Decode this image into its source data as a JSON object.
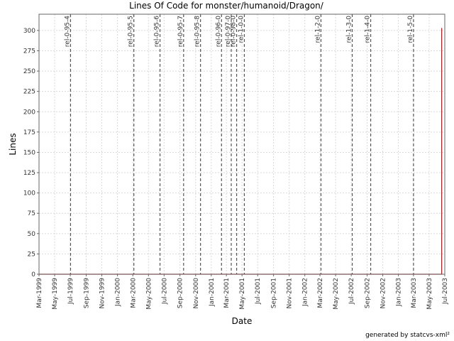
{
  "chart_data": {
    "type": "line",
    "title": "Lines Of Code for monster/humanoid/Dragon/",
    "xlabel": "Date",
    "ylabel": "Lines",
    "footer": "generated by statcvs-xml²",
    "x_range": [
      "1999-03-01",
      "2003-07-01"
    ],
    "ylim": [
      0,
      320
    ],
    "y_ticks": [
      0,
      25,
      50,
      75,
      100,
      125,
      150,
      175,
      200,
      225,
      250,
      275,
      300
    ],
    "x_ticks": [
      {
        "label": "Mar-1999",
        "date": "1999-03-01"
      },
      {
        "label": "May-1999",
        "date": "1999-05-01"
      },
      {
        "label": "Jul-1999",
        "date": "1999-07-01"
      },
      {
        "label": "Sep-1999",
        "date": "1999-09-01"
      },
      {
        "label": "Nov-1999",
        "date": "1999-11-01"
      },
      {
        "label": "Jan-2000",
        "date": "2000-01-01"
      },
      {
        "label": "Mar-2000",
        "date": "2000-03-01"
      },
      {
        "label": "May-2000",
        "date": "2000-05-01"
      },
      {
        "label": "Jul-2000",
        "date": "2000-07-01"
      },
      {
        "label": "Sep-2000",
        "date": "2000-09-01"
      },
      {
        "label": "Nov-2000",
        "date": "2000-11-01"
      },
      {
        "label": "Jan-2001",
        "date": "2001-01-01"
      },
      {
        "label": "Mar-2001",
        "date": "2001-03-01"
      },
      {
        "label": "May-2001",
        "date": "2001-05-01"
      },
      {
        "label": "Jul-2001",
        "date": "2001-07-01"
      },
      {
        "label": "Sep-2001",
        "date": "2001-09-01"
      },
      {
        "label": "Nov-2001",
        "date": "2001-11-01"
      },
      {
        "label": "Jan-2002",
        "date": "2002-01-01"
      },
      {
        "label": "Mar-2002",
        "date": "2002-03-01"
      },
      {
        "label": "May-2002",
        "date": "2002-05-01"
      },
      {
        "label": "Jul-2002",
        "date": "2002-07-01"
      },
      {
        "label": "Sep-2002",
        "date": "2002-09-01"
      },
      {
        "label": "Nov-2002",
        "date": "2002-11-01"
      },
      {
        "label": "Jan-2003",
        "date": "2003-01-01"
      },
      {
        "label": "Mar-2003",
        "date": "2003-03-01"
      },
      {
        "label": "May-2003",
        "date": "2003-05-01"
      },
      {
        "label": "Jul-2003",
        "date": "2003-07-01"
      }
    ],
    "releases": [
      {
        "label": "rel-0-95-4",
        "date": "1999-07-02"
      },
      {
        "label": "rel-0-95-5",
        "date": "2000-03-05"
      },
      {
        "label": "rel-0-95-6",
        "date": "2000-06-15"
      },
      {
        "label": "rel-0-95-7",
        "date": "2000-09-15"
      },
      {
        "label": "rel-0-95-8",
        "date": "2000-11-20"
      },
      {
        "label": "rel-0-96-0",
        "date": "2001-02-10"
      },
      {
        "label": "rel-0-97-0",
        "date": "2001-03-20"
      },
      {
        "label": "rel-0-98-0",
        "date": "2001-04-10"
      },
      {
        "label": "rel-1-0-0",
        "date": "2001-05-10"
      },
      {
        "label": "rel-1-2-0",
        "date": "2002-03-05"
      },
      {
        "label": "rel-1-3-0",
        "date": "2002-07-05"
      },
      {
        "label": "rel-1-4-0",
        "date": "2002-09-15"
      },
      {
        "label": "rel-1-5-0",
        "date": "2003-03-01"
      }
    ],
    "series": [
      {
        "color": "#cc0000",
        "points": [
          {
            "x": "1999-03-01",
            "y": 0
          },
          {
            "x": "2003-06-19",
            "y": 0
          },
          {
            "x": "2003-06-19",
            "y": 303
          }
        ]
      }
    ],
    "grid": true
  }
}
